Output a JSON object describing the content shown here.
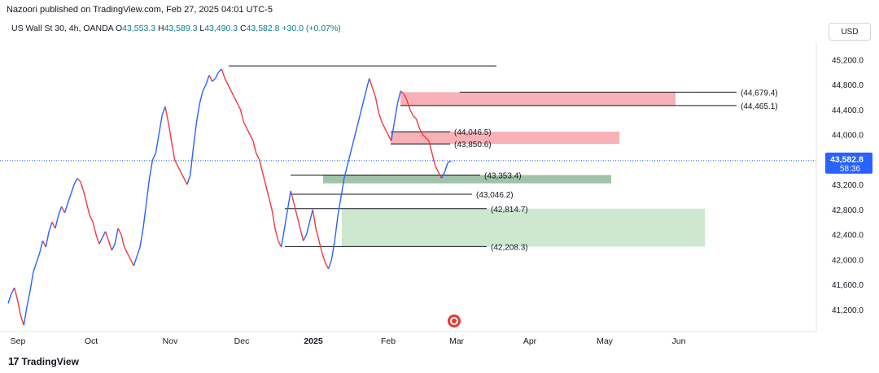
{
  "header": {
    "published_text": "Nazoori published on TradingView.com, Feb 27, 2025 04:01 UTC-5"
  },
  "symbol": {
    "name": "US Wall St 30, 4h, OANDA",
    "open_label": "O",
    "open": "43,553.3",
    "high_label": "H",
    "high": "43,589.3",
    "low_label": "L",
    "low": "43,490.3",
    "close_label": "C",
    "close": "43,582.8",
    "change": "+30.0 (+0.07%)"
  },
  "currency": "USD",
  "price_badge": {
    "price": "43,582.8",
    "countdown": "58:36"
  },
  "footer": {
    "brand": "TradingView"
  },
  "colors": {
    "up": "#2962ff",
    "down": "#f23645",
    "supply_zone": "#f7a8ae",
    "demand_zone": "#c8e6c9",
    "mid_zone": "#8fb89a",
    "badge": "#2962ff"
  },
  "chart_data": {
    "type": "line",
    "title": "",
    "xlabel": "",
    "ylabel": "",
    "ylim": [
      40900,
      45400
    ],
    "x_ticks": [
      "Sep",
      "Oct",
      "Nov",
      "Dec",
      "2025",
      "Feb",
      "Mar",
      "Apr",
      "May",
      "Jun"
    ],
    "y_ticks": [
      41200,
      41600,
      42000,
      42400,
      42800,
      43200,
      43600,
      44000,
      44400,
      44800,
      45200
    ],
    "y_tick_labels": [
      "41,200.0",
      "41,600.0",
      "42,000.0",
      "42,400.0",
      "42,800.0",
      "43,200.0",
      "43,600.0",
      "44,000.0",
      "44,400.0",
      "44,800.0",
      "45,200.0"
    ],
    "series": [
      {
        "values": [
          41300,
          41450,
          41550,
          41350,
          41100,
          40950,
          41250,
          41500,
          41800,
          41950,
          42100,
          42300,
          42200,
          42450,
          42600,
          42500,
          42700,
          42850,
          42750,
          42900,
          43050,
          43200,
          43300,
          43250,
          43100,
          42900,
          42700,
          42600,
          42400,
          42250,
          42350,
          42450,
          42300,
          42150,
          42250,
          42500,
          42400,
          42200,
          42100,
          42000,
          41900,
          42050,
          42200,
          42500,
          42900,
          43300,
          43600,
          43700,
          44000,
          44300,
          44450,
          44200,
          43900,
          43600,
          43500,
          43400,
          43300,
          43200,
          43350,
          43800,
          44200,
          44500,
          44700,
          44800,
          44950,
          44850,
          44900,
          45000,
          45050,
          44900,
          44800,
          44700,
          44600,
          44500,
          44400,
          44200,
          44100,
          44000,
          43900,
          43700,
          43600,
          43400,
          43200,
          43000,
          42800,
          42500,
          42300,
          42200,
          42500,
          42800,
          43100,
          42900,
          42700,
          42500,
          42300,
          42400,
          42600,
          42800,
          42500,
          42300,
          42100,
          41950,
          41850,
          42000,
          42300,
          42700,
          43000,
          43300,
          43500,
          43700,
          43900,
          44100,
          44300,
          44500,
          44700,
          44900,
          44750,
          44600,
          44350,
          44200,
          44100,
          44000,
          43900,
          44200,
          44500,
          44700,
          44650,
          44550,
          44400,
          44300,
          44250,
          44100,
          44000,
          43950,
          43900,
          43700,
          43500,
          43400,
          43300,
          43400,
          43550,
          43580
        ]
      }
    ],
    "last_price": 43582.8,
    "levels": [
      {
        "label": "(44,679.4)",
        "value": 44679.4
      },
      {
        "label": "(44,465.1)",
        "value": 44465.1
      },
      {
        "label": "(44,046.5)",
        "value": 44046.5
      },
      {
        "label": "(43,850.6)",
        "value": 43850.6
      },
      {
        "label": "(43,353.4)",
        "value": 43353.4
      },
      {
        "label": "(43,046.2)",
        "value": 43046.2
      },
      {
        "label": "(42,814.7)",
        "value": 42814.7
      },
      {
        "label": "(42,208.3)",
        "value": 42208.3
      }
    ],
    "top_line_value": 45100,
    "zones": [
      {
        "kind": "supply",
        "y_top": 44679.4,
        "y_bottom": 44465.1
      },
      {
        "kind": "supply",
        "y_top": 44046.5,
        "y_bottom": 43850.6
      },
      {
        "kind": "mid",
        "y_top": 43353.4,
        "y_bottom": 43220
      },
      {
        "kind": "demand",
        "y_top": 42814.7,
        "y_bottom": 42208.3
      }
    ]
  }
}
